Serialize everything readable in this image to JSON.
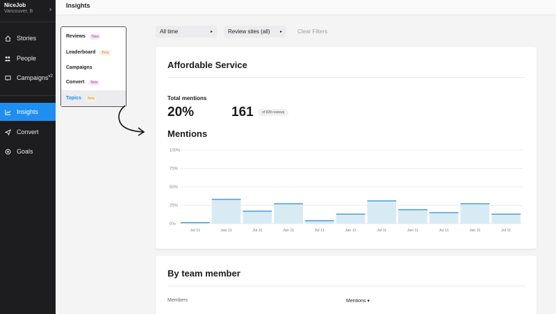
{
  "sidebar": {
    "account_name": "NiceJob",
    "account_location": "Vancouver, B",
    "items": [
      {
        "label": "Stories",
        "icon": "home-icon"
      },
      {
        "label": "People",
        "icon": "people-icon"
      },
      {
        "label": "Campaigns",
        "sup": "v2",
        "icon": "message-icon"
      },
      {
        "label": "Insights",
        "icon": "chart-icon",
        "active": true
      },
      {
        "label": "Convert",
        "icon": "send-icon"
      },
      {
        "label": "Goals",
        "icon": "target-icon"
      }
    ]
  },
  "header": {
    "title": "Insights"
  },
  "menu": {
    "items": [
      {
        "label": "Reviews",
        "badge": "New",
        "badge_type": "new"
      },
      {
        "label": "Leaderboard",
        "badge": "Beta",
        "badge_type": "beta"
      },
      {
        "label": "Campaigns",
        "badge": ""
      },
      {
        "label": "Convert",
        "badge": "New",
        "badge_type": "new"
      },
      {
        "label": "Topics",
        "badge": "Beta",
        "badge_type": "beta",
        "selected": true
      }
    ]
  },
  "filters": {
    "time": "All time",
    "sites": "Review sites (all)",
    "clear": "Clear Filters"
  },
  "card": {
    "title": "Affordable Service",
    "total_label": "Total mentions",
    "percent": "20%",
    "count": "161",
    "of_reviews": "of 828 reviews",
    "mentions_title": "Mentions"
  },
  "chart_data": {
    "type": "bar",
    "categories": [
      "Jul 11",
      "Jan 11",
      "Jul 11",
      "Jan 11",
      "Jul 11",
      "Jan 11",
      "Jul 11",
      "Jan 11",
      "Jul 11",
      "Jan 11",
      "Jul 11"
    ],
    "values": [
      0,
      33,
      17,
      27,
      4,
      13,
      31,
      19,
      15,
      27,
      13
    ],
    "y_ticks": [
      "100%",
      "75%",
      "50%",
      "25%",
      "0%"
    ],
    "ylim": [
      0,
      100
    ],
    "bar_color": "#d8ebf4",
    "line_color": "#2a8bd6"
  },
  "card2": {
    "title": "By team member",
    "col_members": "Members",
    "col_mentions": "Mentions ▾"
  }
}
